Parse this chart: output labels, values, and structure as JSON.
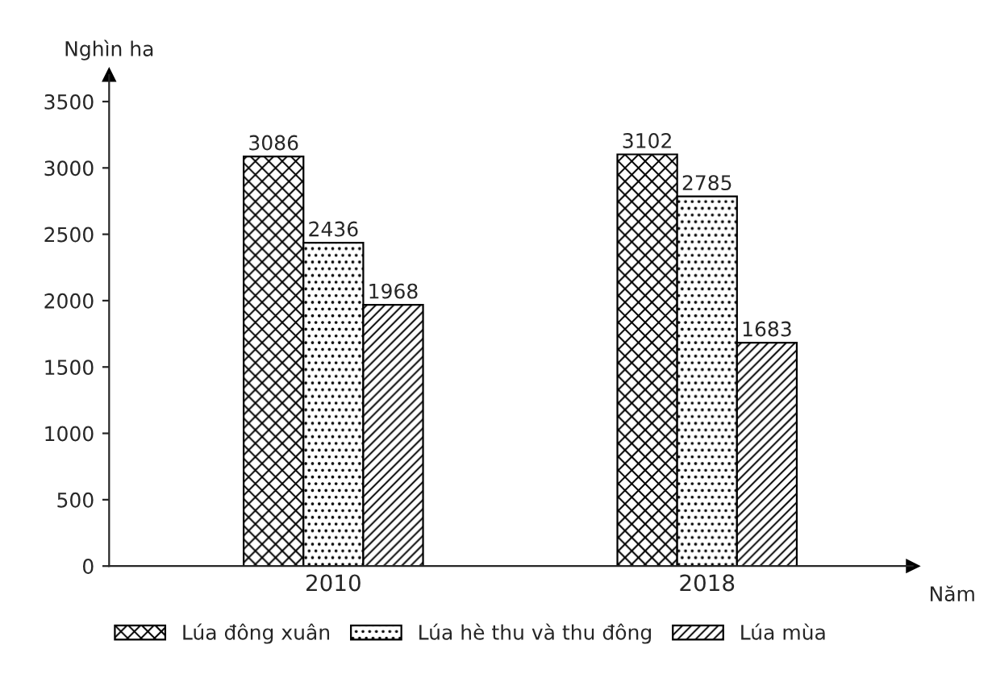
{
  "chart_data": {
    "type": "bar",
    "xlabel": "Năm",
    "ylabel": "Nghìn ha",
    "categories": [
      "2010",
      "2018"
    ],
    "series": [
      {
        "name": "Lúa đông xuân",
        "color": "#000000",
        "values": [
          3086,
          3102
        ]
      },
      {
        "name": "Lúa hè thu và thu đông",
        "color": "#000000",
        "values": [
          2436,
          2785
        ]
      },
      {
        "name": "Lúa mùa",
        "color": "#000000",
        "values": [
          1968,
          1683
        ]
      }
    ],
    "ylim": [
      0,
      3700
    ],
    "yticks": [
      0,
      500,
      1000,
      1500,
      2000,
      2500,
      3000,
      3500
    ],
    "data_labels": true,
    "grid": false,
    "legend": "bottom"
  }
}
